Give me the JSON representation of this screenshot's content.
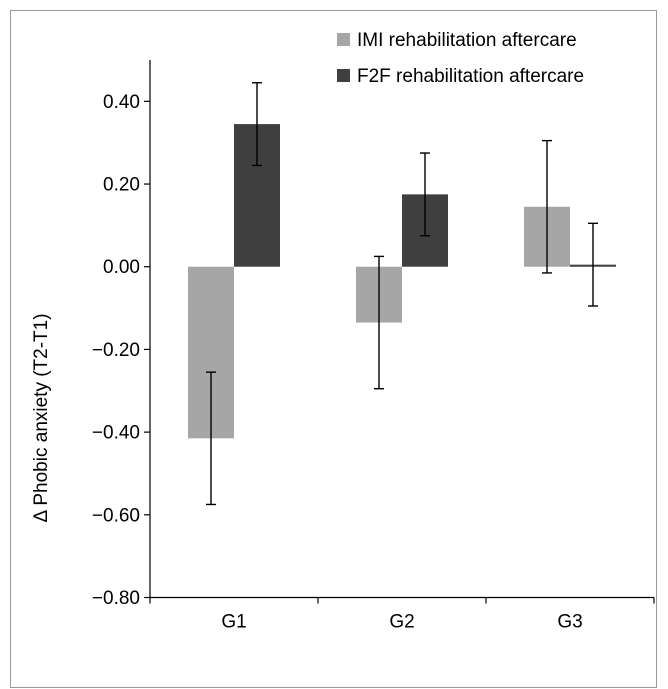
{
  "chart_data": {
    "type": "bar",
    "categories": [
      "G1",
      "G2",
      "G3"
    ],
    "series": [
      {
        "name": "IMI rehabilitation aftercare",
        "color": "#a6a6a6",
        "values": [
          -0.415,
          -0.135,
          0.145
        ],
        "error": [
          0.16,
          0.16,
          0.16
        ]
      },
      {
        "name": "F2F rehabilitation aftercare",
        "color": "#3f3f3f",
        "values": [
          0.345,
          0.175,
          0.005
        ],
        "error": [
          0.1,
          0.1,
          0.1
        ]
      }
    ],
    "ylabel": "Δ Phobic anxiety (T2-T1)",
    "xlabel": "",
    "title": "",
    "ylim": [
      -0.8,
      0.5
    ],
    "yticks": [
      0.4,
      0.2,
      0.0,
      -0.2,
      -0.4,
      -0.6,
      -0.8
    ],
    "ytick_labels": [
      "0.40",
      "0.20",
      "0.00",
      "−0.20",
      "−0.40",
      "−0.60",
      "−0.80"
    ],
    "grid": false,
    "legend_position": "top-right"
  }
}
